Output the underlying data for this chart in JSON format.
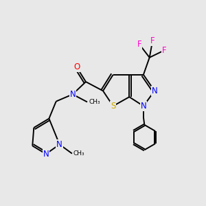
{
  "background_color": "#e8e8e8",
  "bond_color": "#000000",
  "atom_colors": {
    "N": "#0000ff",
    "O": "#ff0000",
    "S": "#ccaa00",
    "F": "#ff00cc",
    "C": "#000000"
  },
  "lw": 1.4
}
